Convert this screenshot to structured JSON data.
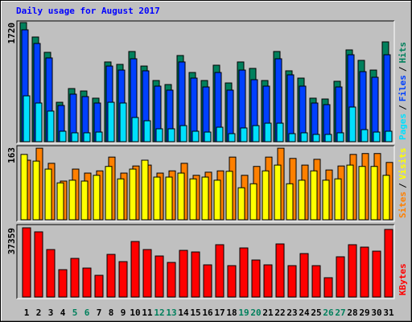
{
  "chart_data": [
    {
      "type": "bar",
      "title": "Daily usage for August 2017",
      "ylim": [
        0,
        1720
      ],
      "legend_separator": "/",
      "series": [
        {
          "name": "Hits",
          "color": "#00805c",
          "values": [
            1720,
            1511,
            1290,
            569,
            767,
            732,
            628,
            1151,
            1116,
            1302,
            1092,
            883,
            825,
            1244,
            999,
            883,
            1104,
            848,
            1151,
            1058,
            883,
            1302,
            1023,
            918,
            628,
            616,
            872,
            1325,
            1174,
            1034,
            1441
          ]
        },
        {
          "name": "Files",
          "color": "#0040ff",
          "values": [
            1615,
            1418,
            1209,
            523,
            686,
            651,
            558,
            1092,
            1034,
            1197,
            1023,
            802,
            744,
            1151,
            918,
            790,
            999,
            744,
            1034,
            895,
            802,
            1197,
            965,
            802,
            558,
            535,
            790,
            1255,
            1011,
            930,
            1255
          ]
        },
        {
          "name": "Pages",
          "color": "#00e0ff",
          "values": [
            662,
            558,
            442,
            151,
            128,
            128,
            139,
            569,
            558,
            349,
            302,
            186,
            186,
            232,
            151,
            139,
            209,
            116,
            198,
            232,
            267,
            267,
            116,
            128,
            105,
            105,
            128,
            500,
            174,
            139,
            151
          ]
        }
      ]
    },
    {
      "type": "bar",
      "ylim": [
        0,
        163
      ],
      "series": [
        {
          "name": "Visits",
          "color": "#ffff00",
          "values": [
            147,
            132,
            114,
            83,
            89,
            87,
            100,
            120,
            92,
            114,
            134,
            96,
            96,
            105,
            92,
            96,
            89,
            109,
            72,
            81,
            110,
            123,
            81,
            89,
            110,
            89,
            92,
            123,
            120,
            120,
            100
          ]
        },
        {
          "name": "Sites",
          "color": "#ff8000",
          "values": [
            134,
            161,
            127,
            87,
            114,
            105,
            110,
            141,
            105,
            121,
            123,
            105,
            110,
            127,
            100,
            107,
            110,
            141,
            100,
            120,
            141,
            161,
            138,
            123,
            136,
            112,
            121,
            147,
            149,
            149,
            129
          ]
        }
      ]
    },
    {
      "type": "bar",
      "ylim": [
        0,
        37359
      ],
      "categories": [
        "1",
        "2",
        "3",
        "4",
        "5",
        "6",
        "7",
        "8",
        "9",
        "10",
        "11",
        "12",
        "13",
        "14",
        "15",
        "16",
        "17",
        "18",
        "19",
        "20",
        "21",
        "22",
        "23",
        "24",
        "25",
        "26",
        "27",
        "28",
        "29",
        "30",
        "31"
      ],
      "category_colors": [
        "#000000",
        "#000000",
        "#000000",
        "#000000",
        "#00805c",
        "#00805c",
        "#000000",
        "#000000",
        "#000000",
        "#000000",
        "#000000",
        "#00805c",
        "#00805c",
        "#000000",
        "#000000",
        "#000000",
        "#000000",
        "#000000",
        "#00805c",
        "#00805c",
        "#000000",
        "#000000",
        "#000000",
        "#000000",
        "#000000",
        "#00805c",
        "#00805c",
        "#000000",
        "#000000",
        "#000000",
        "#000000"
      ],
      "series": [
        {
          "name": "KBytes",
          "color": "#ff0000",
          "values": [
            37359,
            35186,
            25630,
            14770,
            20851,
            15638,
            11729,
            23023,
            19114,
            29974,
            25630,
            22154,
            18679,
            25195,
            24326,
            17376,
            28236,
            16942,
            26498,
            19982,
            17376,
            28670,
            16942,
            23458,
            16942,
            10426,
            21720,
            28236,
            26933,
            24761,
            36490
          ]
        }
      ]
    }
  ]
}
